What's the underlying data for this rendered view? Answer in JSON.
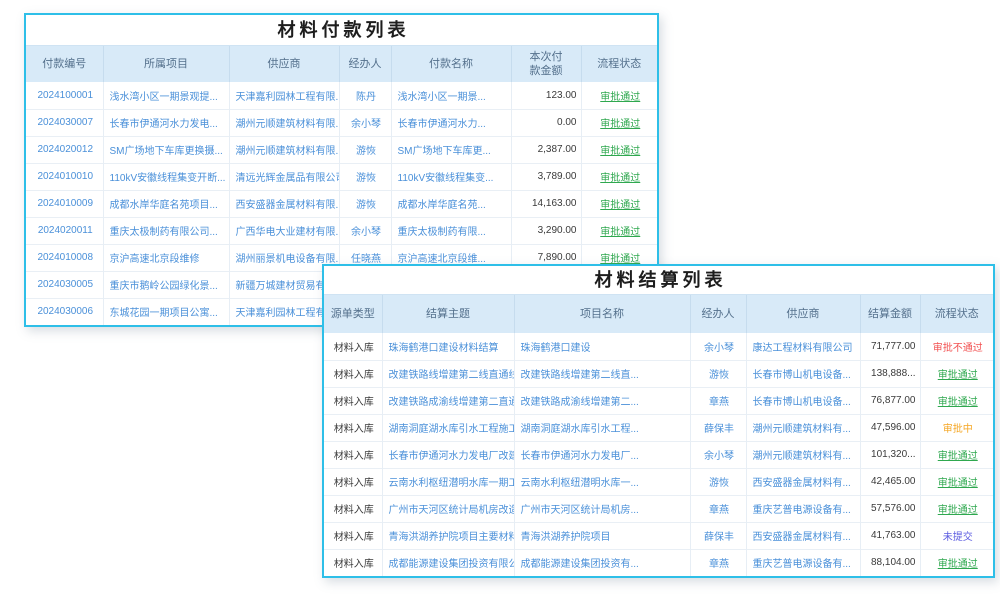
{
  "colors": {
    "card_border": "#2ebfe8",
    "header_background": "#d8eaf8",
    "header_text": "#54708c",
    "link_text": "#4a90d9",
    "status": {
      "审批通过": "#2fa84f",
      "审批不通过": "#f25050",
      "审批中": "#f5a623",
      "未提交": "#5a5ae0"
    }
  },
  "payment_table": {
    "title": "材料付款列表",
    "headers": [
      "付款编号",
      "所属项目",
      "供应商",
      "经办人",
      "付款名称",
      "本次付款金额",
      "流程状态"
    ],
    "rows": [
      {
        "number": "2024100001",
        "project": "浅水湾小区一期景观提...",
        "supplier": "天津嘉利园林工程有限...",
        "handler": "陈丹",
        "payment_name": "浅水湾小区一期景...",
        "amount": "123.00",
        "status": "审批通过"
      },
      {
        "number": "2024030007",
        "project": "长春市伊通河水力发电...",
        "supplier": "潮州元顺建筑材料有限...",
        "handler": "余小琴",
        "payment_name": "长春市伊通河水力...",
        "amount": "0.00",
        "status": "审批通过"
      },
      {
        "number": "2024020012",
        "project": "SM广场地下车库更换摄...",
        "supplier": "潮州元顺建筑材料有限...",
        "handler": "游恢",
        "payment_name": "SM广场地下车库更...",
        "amount": "2,387.00",
        "status": "审批通过"
      },
      {
        "number": "2024010010",
        "project": "110kV安徽线程集变开断...",
        "supplier": "清远光辉金属品有限公司",
        "handler": "游恢",
        "payment_name": "110kV安徽线程集变...",
        "amount": "3,789.00",
        "status": "审批通过"
      },
      {
        "number": "2024010009",
        "project": "成都水岸华庭名苑项目...",
        "supplier": "西安盛器金属材料有限...",
        "handler": "游恢",
        "payment_name": "成都水岸华庭名苑...",
        "amount": "14,163.00",
        "status": "审批通过"
      },
      {
        "number": "2024020011",
        "project": "重庆太极制药有限公司...",
        "supplier": "广西华电大业建材有限...",
        "handler": "余小琴",
        "payment_name": "重庆太极制药有限...",
        "amount": "3,290.00",
        "status": "审批通过"
      },
      {
        "number": "2024010008",
        "project": "京沪高速北京段维修",
        "supplier": "湖州丽景机电设备有限...",
        "handler": "任晓燕",
        "payment_name": "京沪高速北京段维...",
        "amount": "7,890.00",
        "status": "审批通过"
      },
      {
        "number": "2024030005",
        "project": "重庆市鹅岭公园绿化景...",
        "supplier": "新疆万城建材贸易有限...",
        "handler": "",
        "payment_name": "",
        "amount": "",
        "status": ""
      },
      {
        "number": "2024030006",
        "project": "东城花园一期项目公寓...",
        "supplier": "天津嘉利园林工程有限...",
        "handler": "",
        "payment_name": "",
        "amount": "",
        "status": ""
      }
    ]
  },
  "settlement_table": {
    "title": "材料结算列表",
    "headers": [
      "源单类型",
      "结算主题",
      "项目名称",
      "经办人",
      "供应商",
      "结算金额",
      "流程状态"
    ],
    "rows": [
      {
        "source_type": "材料入库",
        "subject": "珠海鹤港口建设材料结算",
        "project": "珠海鹤港口建设",
        "handler": "余小琴",
        "supplier": "康达工程材料有限公司",
        "amount": "71,777.00",
        "status": "审批不通过"
      },
      {
        "source_type": "材料入库",
        "subject": "改建铁路线增建第二线直通线（成...",
        "project": "改建铁路线增建第二线直...",
        "handler": "游恢",
        "supplier": "长春市博山机电设备...",
        "amount": "138,888...",
        "status": "审批通过"
      },
      {
        "source_type": "材料入库",
        "subject": "改建铁路成渝线增建第二直通线（...",
        "project": "改建铁路成渝线增建第二...",
        "handler": "章燕",
        "supplier": "长春市博山机电设备...",
        "amount": "76,877.00",
        "status": "审批通过"
      },
      {
        "source_type": "材料入库",
        "subject": "湖南洞庭湖水库引水工程施工I标材...",
        "project": "湖南洞庭湖水库引水工程...",
        "handler": "薛保丰",
        "supplier": "潮州元顺建筑材料有...",
        "amount": "47,596.00",
        "status": "审批中"
      },
      {
        "source_type": "材料入库",
        "subject": "长春市伊通河水力发电厂改建工程...",
        "project": "长春市伊通河水力发电厂...",
        "handler": "余小琴",
        "supplier": "潮州元顺建筑材料有...",
        "amount": "101,320...",
        "status": "审批通过"
      },
      {
        "source_type": "材料入库",
        "subject": "云南水利枢纽潜明水库一期工程施...",
        "project": "云南水利枢纽潜明水库一...",
        "handler": "游恢",
        "supplier": "西安盛器金属材料有...",
        "amount": "42,465.00",
        "status": "审批通过"
      },
      {
        "source_type": "材料入库",
        "subject": "广州市天河区统计局机房改造项目...",
        "project": "广州市天河区统计局机房...",
        "handler": "章燕",
        "supplier": "重庆艺普电源设备有...",
        "amount": "57,576.00",
        "status": "审批通过"
      },
      {
        "source_type": "材料入库",
        "subject": "青海洪湖养护院项目主要材料结算",
        "project": "青海洪湖养护院项目",
        "handler": "薛保丰",
        "supplier": "西安盛器金属材料有...",
        "amount": "41,763.00",
        "status": "未提交"
      },
      {
        "source_type": "材料入库",
        "subject": "成都能源建设集团投资有限公司临...",
        "project": "成都能源建设集团投资有...",
        "handler": "章燕",
        "supplier": "重庆艺普电源设备有...",
        "amount": "88,104.00",
        "status": "审批通过"
      }
    ]
  }
}
